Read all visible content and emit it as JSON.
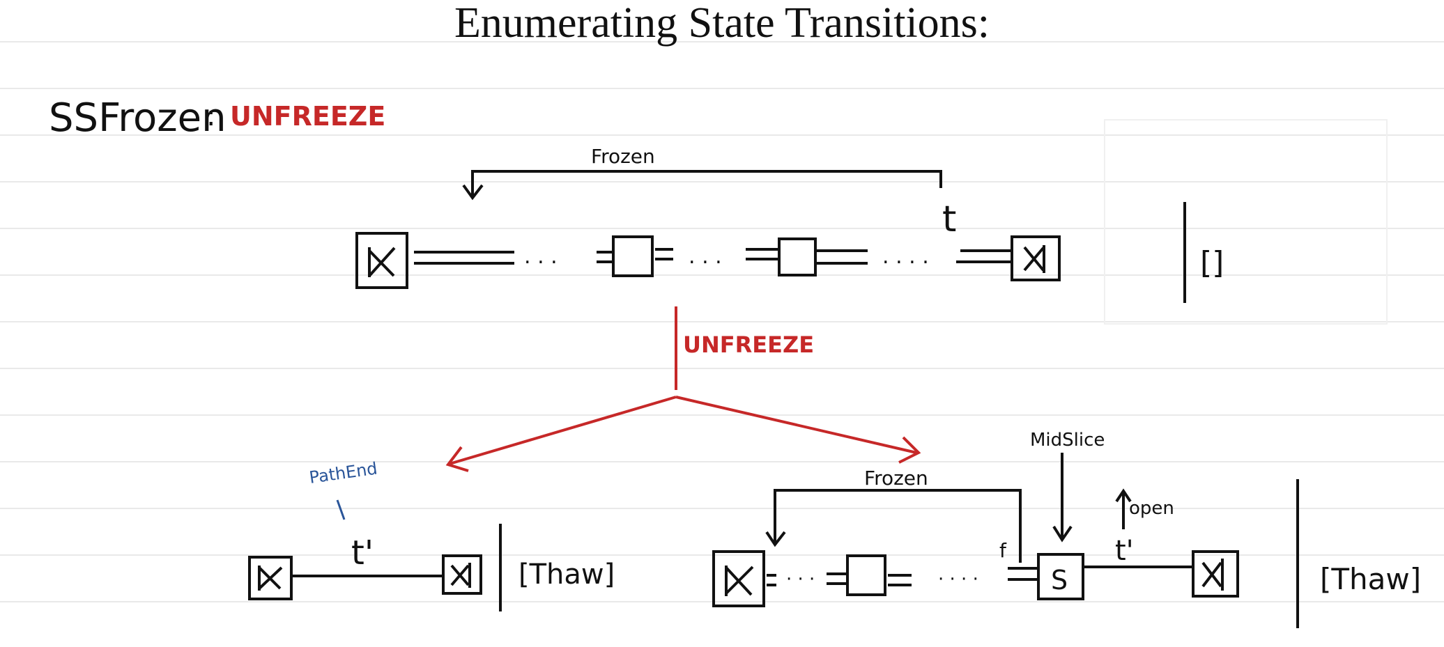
{
  "title": "Enumerating State Transitions:",
  "section_label": "SSFrozen",
  "section_colon": ":",
  "section_action": "UNFREEZE",
  "top_diagram": {
    "bracket_label": "Frozen",
    "cursor_label": "t",
    "dots": [
      ". . .",
      ". . .",
      ". . . ."
    ],
    "stack_label": "[]"
  },
  "transition": {
    "label": "UNFREEZE"
  },
  "left_result": {
    "annotation": "PathEnd",
    "edge_label": "t'",
    "stack_label": "[Thaw]"
  },
  "right_result": {
    "bracket_label": "Frozen",
    "midslice_label": "MidSlice",
    "open_label": "open",
    "f_label": "f",
    "s_label": "S",
    "edge_label": "t'",
    "dots": [
      "· · ·",
      "· · · ·"
    ],
    "stack_label": "[Thaw]"
  },
  "colors": {
    "ink": "#111111",
    "red": "#c62828",
    "blue": "#2a5599",
    "ruled_line": "#e2e2e2"
  }
}
